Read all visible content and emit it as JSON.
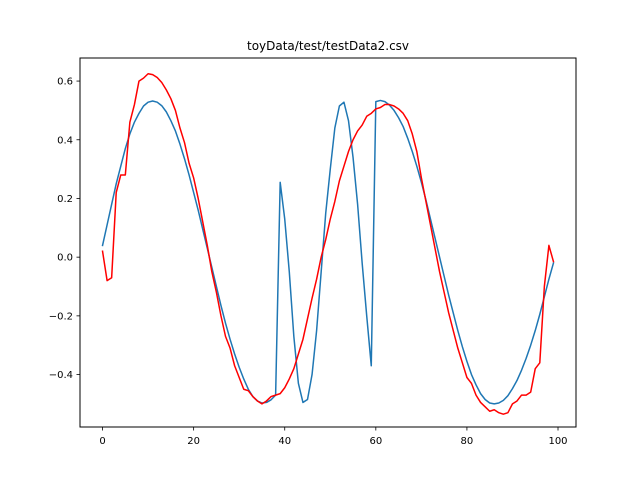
{
  "chart_data": {
    "type": "line",
    "title": "toyData/test/testData2.csv",
    "xlabel": "",
    "ylabel": "",
    "xlim": [
      -4.95,
      103.95
    ],
    "ylim": [
      -0.5787,
      0.6786
    ],
    "grid": false,
    "xticks": [
      0,
      20,
      40,
      60,
      80,
      100
    ],
    "xtick_labels": [
      "0",
      "20",
      "40",
      "60",
      "80",
      "100"
    ],
    "yticks": [
      -0.4,
      -0.2,
      0.0,
      0.2,
      0.4,
      0.6
    ],
    "ytick_labels": [
      "−0.4",
      "−0.2",
      "0.0",
      "0.2",
      "0.4",
      "0.6"
    ],
    "series": [
      {
        "color": "#1f77b4",
        "x": [
          0,
          1,
          2,
          3,
          4,
          5,
          6,
          7,
          8,
          9,
          10,
          11,
          12,
          13,
          14,
          15,
          16,
          17,
          18,
          19,
          20,
          21,
          22,
          23,
          24,
          25,
          26,
          27,
          28,
          29,
          30,
          31,
          32,
          33,
          34,
          35,
          36,
          37,
          38,
          39,
          40,
          41,
          42,
          43,
          44,
          45,
          46,
          47,
          48,
          49,
          50,
          51,
          52,
          53,
          54,
          55,
          56,
          57,
          58,
          59,
          60,
          61,
          62,
          63,
          64,
          65,
          66,
          67,
          68,
          69,
          70,
          71,
          72,
          73,
          74,
          75,
          76,
          77,
          78,
          79,
          80,
          81,
          82,
          83,
          84,
          85,
          86,
          87,
          88,
          89,
          90,
          91,
          92,
          93,
          94,
          95,
          96,
          97,
          98,
          99
        ],
        "y": [
          0.04,
          0.11,
          0.18,
          0.25,
          0.31,
          0.37,
          0.42,
          0.46,
          0.49,
          0.515,
          0.528,
          0.532,
          0.528,
          0.516,
          0.495,
          0.465,
          0.43,
          0.385,
          0.335,
          0.28,
          0.22,
          0.16,
          0.095,
          0.03,
          -0.035,
          -0.1,
          -0.165,
          -0.225,
          -0.28,
          -0.33,
          -0.375,
          -0.415,
          -0.45,
          -0.475,
          -0.49,
          -0.497,
          -0.495,
          -0.486,
          -0.47,
          0.255,
          0.13,
          -0.05,
          -0.27,
          -0.43,
          -0.495,
          -0.485,
          -0.4,
          -0.25,
          -0.05,
          0.15,
          0.3,
          0.44,
          0.515,
          0.528,
          0.465,
          0.34,
          0.18,
          -0.02,
          -0.2,
          -0.37,
          0.53,
          0.534,
          0.53,
          0.518,
          0.5,
          0.475,
          0.445,
          0.405,
          0.36,
          0.31,
          0.255,
          0.195,
          0.13,
          0.065,
          0.0,
          -0.065,
          -0.13,
          -0.19,
          -0.25,
          -0.305,
          -0.355,
          -0.4,
          -0.435,
          -0.465,
          -0.485,
          -0.497,
          -0.5,
          -0.497,
          -0.488,
          -0.472,
          -0.448,
          -0.42,
          -0.385,
          -0.345,
          -0.3,
          -0.25,
          -0.195,
          -0.135,
          -0.075,
          -0.02
        ]
      },
      {
        "color": "#ff0000",
        "x": [
          0,
          1,
          2,
          3,
          4,
          5,
          6,
          7,
          8,
          9,
          10,
          11,
          12,
          13,
          14,
          15,
          16,
          17,
          18,
          19,
          20,
          21,
          22,
          23,
          24,
          25,
          26,
          27,
          28,
          29,
          30,
          31,
          32,
          33,
          34,
          35,
          36,
          37,
          38,
          39,
          40,
          41,
          42,
          43,
          44,
          45,
          46,
          47,
          48,
          49,
          50,
          51,
          52,
          53,
          54,
          55,
          56,
          57,
          58,
          59,
          60,
          61,
          62,
          63,
          64,
          65,
          66,
          67,
          68,
          69,
          70,
          71,
          72,
          73,
          74,
          75,
          76,
          77,
          78,
          79,
          80,
          81,
          82,
          83,
          84,
          85,
          86,
          87,
          88,
          89,
          90,
          91,
          92,
          93,
          94,
          95,
          96,
          97,
          98,
          99
        ],
        "y": [
          0.02,
          -0.08,
          -0.07,
          0.22,
          0.28,
          0.28,
          0.46,
          0.52,
          0.6,
          0.61,
          0.625,
          0.622,
          0.612,
          0.595,
          0.57,
          0.54,
          0.5,
          0.44,
          0.39,
          0.32,
          0.27,
          0.2,
          0.12,
          0.04,
          -0.05,
          -0.12,
          -0.2,
          -0.27,
          -0.31,
          -0.37,
          -0.41,
          -0.45,
          -0.455,
          -0.475,
          -0.49,
          -0.5,
          -0.49,
          -0.475,
          -0.47,
          -0.465,
          -0.445,
          -0.415,
          -0.38,
          -0.33,
          -0.28,
          -0.21,
          -0.14,
          -0.075,
          0.0,
          0.06,
          0.13,
          0.19,
          0.26,
          0.31,
          0.36,
          0.4,
          0.43,
          0.45,
          0.48,
          0.49,
          0.505,
          0.51,
          0.52,
          0.52,
          0.515,
          0.505,
          0.49,
          0.465,
          0.42,
          0.36,
          0.27,
          0.19,
          0.11,
          0.03,
          -0.05,
          -0.12,
          -0.19,
          -0.25,
          -0.31,
          -0.36,
          -0.41,
          -0.43,
          -0.47,
          -0.495,
          -0.51,
          -0.525,
          -0.52,
          -0.53,
          -0.535,
          -0.53,
          -0.5,
          -0.49,
          -0.47,
          -0.47,
          -0.46,
          -0.38,
          -0.36,
          -0.1,
          0.04,
          -0.015
        ]
      }
    ]
  }
}
